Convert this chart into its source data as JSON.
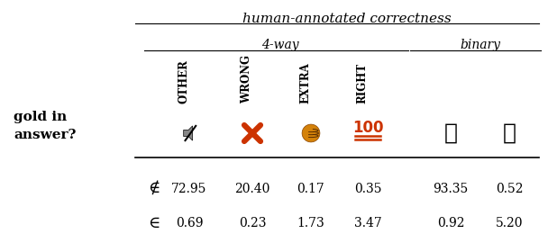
{
  "title": "human-annotated correctness",
  "group_4way_label": "4-way",
  "group_binary_label": "binary",
  "col_names_4way": [
    "OTHER",
    "WRONG",
    "EXTRA",
    "RIGHT"
  ],
  "row_symbols": [
    "∉",
    "∈"
  ],
  "data": [
    [
      72.95,
      20.4,
      0.17,
      0.35,
      93.35,
      0.52
    ],
    [
      0.69,
      0.23,
      1.73,
      3.47,
      0.92,
      5.2
    ]
  ],
  "bg_color": "#ffffff",
  "text_color": "#000000",
  "line_color": "#000000",
  "red_color": "#cc3300",
  "orange_color": "#d4820a",
  "gray_color": "#888888"
}
